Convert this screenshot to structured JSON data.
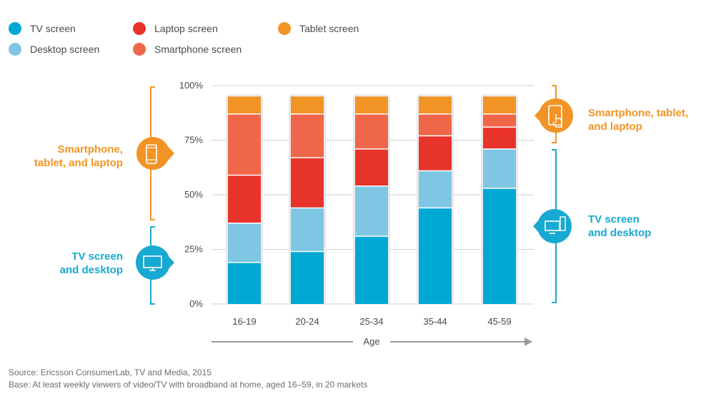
{
  "colors": {
    "tv": "#00a8d4",
    "desktop": "#7fc6e4",
    "laptop": "#e8332a",
    "smartphone": "#f0664a",
    "tablet": "#f29425",
    "orange_group": "#f29425",
    "blue_group": "#18a9d2",
    "bar_border": "#e9e9e9",
    "grid": "#cfcfcf",
    "axis_arrow": "#999999"
  },
  "legend": [
    {
      "label": "TV screen",
      "color": "#00a8d4"
    },
    {
      "label": "Desktop screen",
      "color": "#7fc6e4"
    },
    {
      "label": "Laptop screen",
      "color": "#e8332a"
    },
    {
      "label": "Smartphone screen",
      "color": "#f0664a"
    },
    {
      "label": "Tablet screen",
      "color": "#f29425"
    }
  ],
  "annotations": {
    "left_mobile": "Smartphone,\ntablet, and laptop",
    "left_tv": "TV screen\nand desktop",
    "right_mobile": "Smartphone, tablet,\nand laptop",
    "right_tv": "TV screen\nand desktop",
    "left_mobile_icon": "smartphone-icon",
    "left_tv_icon": "tv-icon",
    "right_mobile_icon": "tablet-touch-icon",
    "right_tv_icon": "tv-desktop-icon"
  },
  "chart_data": {
    "type": "bar",
    "stacked": true,
    "categories": [
      "16-19",
      "20-24",
      "25-34",
      "35-44",
      "45-59"
    ],
    "series": [
      {
        "name": "TV screen",
        "values": [
          19,
          24,
          31,
          44,
          53
        ]
      },
      {
        "name": "Desktop screen",
        "values": [
          18,
          20,
          23,
          17,
          18
        ]
      },
      {
        "name": "Laptop screen",
        "values": [
          22,
          23,
          17,
          16,
          10
        ]
      },
      {
        "name": "Smartphone screen",
        "values": [
          28,
          20,
          16,
          10,
          6
        ]
      },
      {
        "name": "Tablet screen",
        "values": [
          8,
          8,
          8,
          8,
          8
        ]
      }
    ],
    "yticks": [
      "0%",
      "25%",
      "50%",
      "75%",
      "100%"
    ],
    "ylim": [
      0,
      100
    ],
    "xlabel": "Age",
    "grid": true
  },
  "footer": {
    "source": "Source: Ericsson ConsumerLab, TV and Media, 2015",
    "base": "Base: At least weekly viewers of video/TV with broadband at home, aged 16–59, in 20 markets"
  }
}
